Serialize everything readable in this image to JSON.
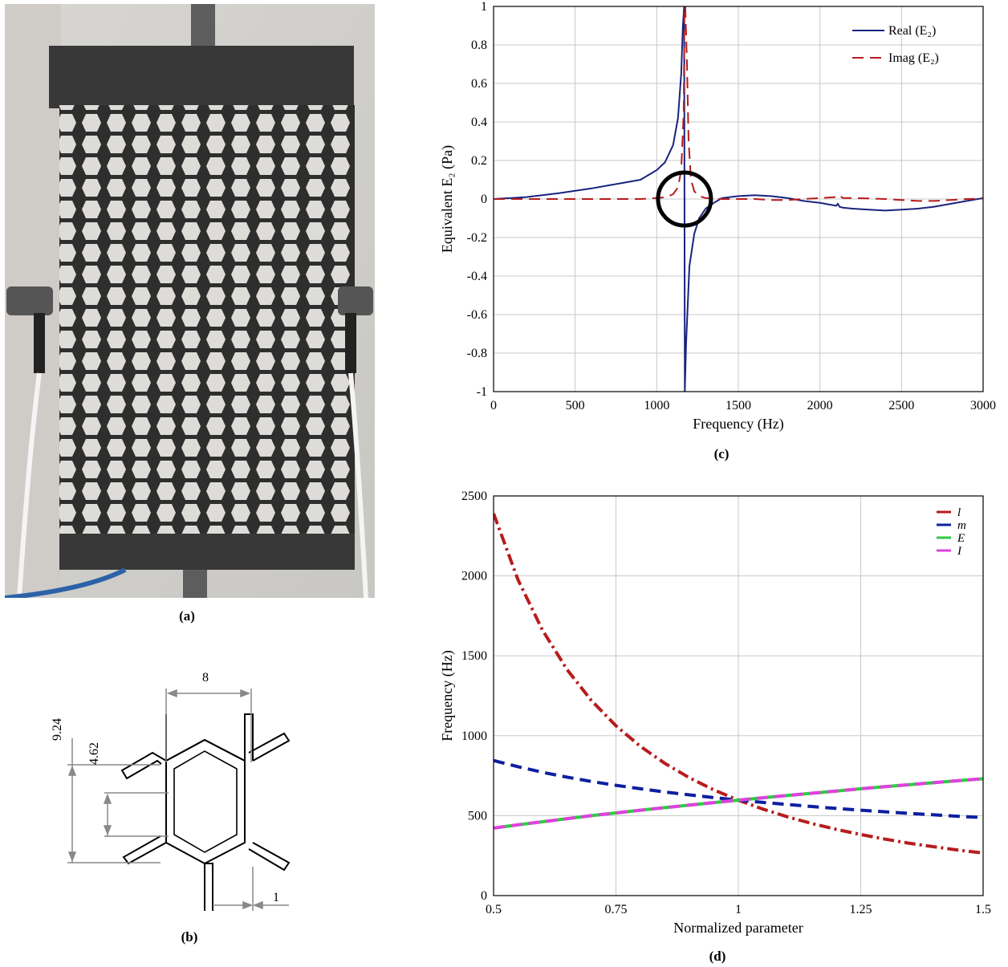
{
  "captions": {
    "a": "(a)",
    "b": "(b)",
    "c": "(c)",
    "d": "(d)"
  },
  "panel_b": {
    "dims": {
      "width_top": "8",
      "height_outer": "9.24",
      "height_inner": "4.62",
      "thickness": "1"
    }
  },
  "chart_data": [
    {
      "type": "line",
      "panel": "c",
      "xlabel": "Frequency (Hz)",
      "ylabel": "Equivalent E₂ (Pa)",
      "xlim": [
        0,
        3000
      ],
      "ylim": [
        -1,
        1
      ],
      "xticks": [
        "0",
        "500",
        "1000",
        "1500",
        "2000",
        "2500",
        "3000"
      ],
      "yticks": [
        "-1",
        "-0.8",
        "-0.6",
        "-0.4",
        "-0.2",
        "0",
        "0.2",
        "0.4",
        "0.6",
        "0.8",
        "1"
      ],
      "grid": true,
      "legend_position": "top-right",
      "annotation": "black circle around resonance near 1170 Hz, y = 0",
      "series": [
        {
          "name": "Real (E₂)",
          "color": "#1a237e",
          "style": "solid",
          "x": [
            0,
            200,
            400,
            600,
            800,
            900,
            950,
            1000,
            1050,
            1100,
            1130,
            1150,
            1160,
            1168,
            1170,
            1172,
            1180,
            1200,
            1230,
            1260,
            1300,
            1350,
            1400,
            1500,
            1600,
            1700,
            1800,
            1900,
            2000,
            2100,
            2110,
            2120,
            2140,
            2200,
            2300,
            2400,
            2500,
            2600,
            2700,
            2800,
            2900,
            3000
          ],
          "y": [
            0,
            0.01,
            0.03,
            0.055,
            0.085,
            0.1,
            0.125,
            0.15,
            0.19,
            0.28,
            0.42,
            0.65,
            0.9,
            1.0,
            0,
            -1.0,
            -0.75,
            -0.35,
            -0.18,
            -0.1,
            -0.05,
            -0.02,
            0.005,
            0.015,
            0.02,
            0.015,
            0.005,
            -0.01,
            -0.02,
            -0.035,
            -0.025,
            -0.04,
            -0.045,
            -0.05,
            -0.055,
            -0.06,
            -0.055,
            -0.05,
            -0.04,
            -0.025,
            -0.01,
            0.005
          ]
        },
        {
          "name": "Imag (E₂)",
          "color": "#b71c1c",
          "style": "dashed",
          "x": [
            0,
            500,
            900,
            1000,
            1060,
            1100,
            1130,
            1150,
            1165,
            1170,
            1175,
            1185,
            1195,
            1210,
            1230,
            1260,
            1300,
            1400,
            1500,
            1600,
            1700,
            1800,
            1900,
            2000,
            2100,
            2120,
            2140,
            2200,
            2300,
            2400,
            2500,
            2600,
            2700,
            2800,
            2900,
            3000
          ],
          "y": [
            0,
            0,
            0,
            0.005,
            0.01,
            0.025,
            0.06,
            0.15,
            0.45,
            1.0,
            1.0,
            0.7,
            0.3,
            0.1,
            0.04,
            0.015,
            0.005,
            0,
            0,
            0,
            -0.005,
            -0.005,
            0,
            0.005,
            0.01,
            0.02,
            0.005,
            0.005,
            0.003,
            0,
            -0.005,
            -0.01,
            -0.01,
            -0.005,
            0,
            0.002
          ]
        }
      ]
    },
    {
      "type": "line",
      "panel": "d",
      "xlabel": "Normalized parameter",
      "ylabel": "Frequency (Hz)",
      "xlim": [
        0.5,
        1.5
      ],
      "ylim": [
        0,
        2500
      ],
      "xticks": [
        "0.5",
        "0.75",
        "1",
        "1.25",
        "1.5"
      ],
      "yticks": [
        "0",
        "500",
        "1000",
        "1500",
        "2000",
        "2500"
      ],
      "grid": true,
      "legend_position": "top-right",
      "series": [
        {
          "name": "l",
          "color": "#b71c1c",
          "style": "dashdot",
          "x": [
            0.5,
            0.55,
            0.6,
            0.65,
            0.7,
            0.75,
            0.8,
            0.85,
            0.9,
            0.95,
            1.0,
            1.05,
            1.1,
            1.15,
            1.2,
            1.25,
            1.3,
            1.35,
            1.4,
            1.45,
            1.5
          ],
          "y": [
            2390,
            1975,
            1660,
            1414,
            1220,
            1062,
            933,
            827,
            737,
            661,
            597,
            541,
            493,
            451,
            414,
            382,
            353,
            327,
            305,
            284,
            266
          ]
        },
        {
          "name": "m",
          "color": "#0d1fa0",
          "style": "dashed",
          "x": [
            0.5,
            0.55,
            0.6,
            0.65,
            0.7,
            0.75,
            0.8,
            0.85,
            0.9,
            0.95,
            1.0,
            1.05,
            1.1,
            1.15,
            1.2,
            1.25,
            1.3,
            1.35,
            1.4,
            1.45,
            1.5
          ],
          "y": [
            845,
            806,
            771,
            741,
            714,
            690,
            668,
            648,
            630,
            613,
            597,
            583,
            570,
            557,
            545,
            534,
            524,
            514,
            505,
            496,
            488
          ]
        },
        {
          "name": "E",
          "color": "#2ecc40",
          "style": "solid",
          "x": [
            0.5,
            0.55,
            0.6,
            0.65,
            0.7,
            0.75,
            0.8,
            0.85,
            0.9,
            0.95,
            1.0,
            1.05,
            1.1,
            1.15,
            1.2,
            1.25,
            1.3,
            1.35,
            1.4,
            1.45,
            1.5
          ],
          "y": [
            422,
            443,
            462,
            481,
            500,
            517,
            534,
            550,
            566,
            582,
            597,
            612,
            626,
            640,
            654,
            668,
            681,
            694,
            707,
            719,
            731
          ]
        },
        {
          "name": "I",
          "color": "#e040e0",
          "style": "dashed",
          "x": [
            0.5,
            0.55,
            0.6,
            0.65,
            0.7,
            0.75,
            0.8,
            0.85,
            0.9,
            0.95,
            1.0,
            1.05,
            1.1,
            1.15,
            1.2,
            1.25,
            1.3,
            1.35,
            1.4,
            1.45,
            1.5
          ],
          "y": [
            422,
            443,
            462,
            481,
            500,
            517,
            534,
            550,
            566,
            582,
            597,
            612,
            626,
            640,
            654,
            668,
            681,
            694,
            707,
            719,
            731
          ]
        }
      ]
    }
  ]
}
